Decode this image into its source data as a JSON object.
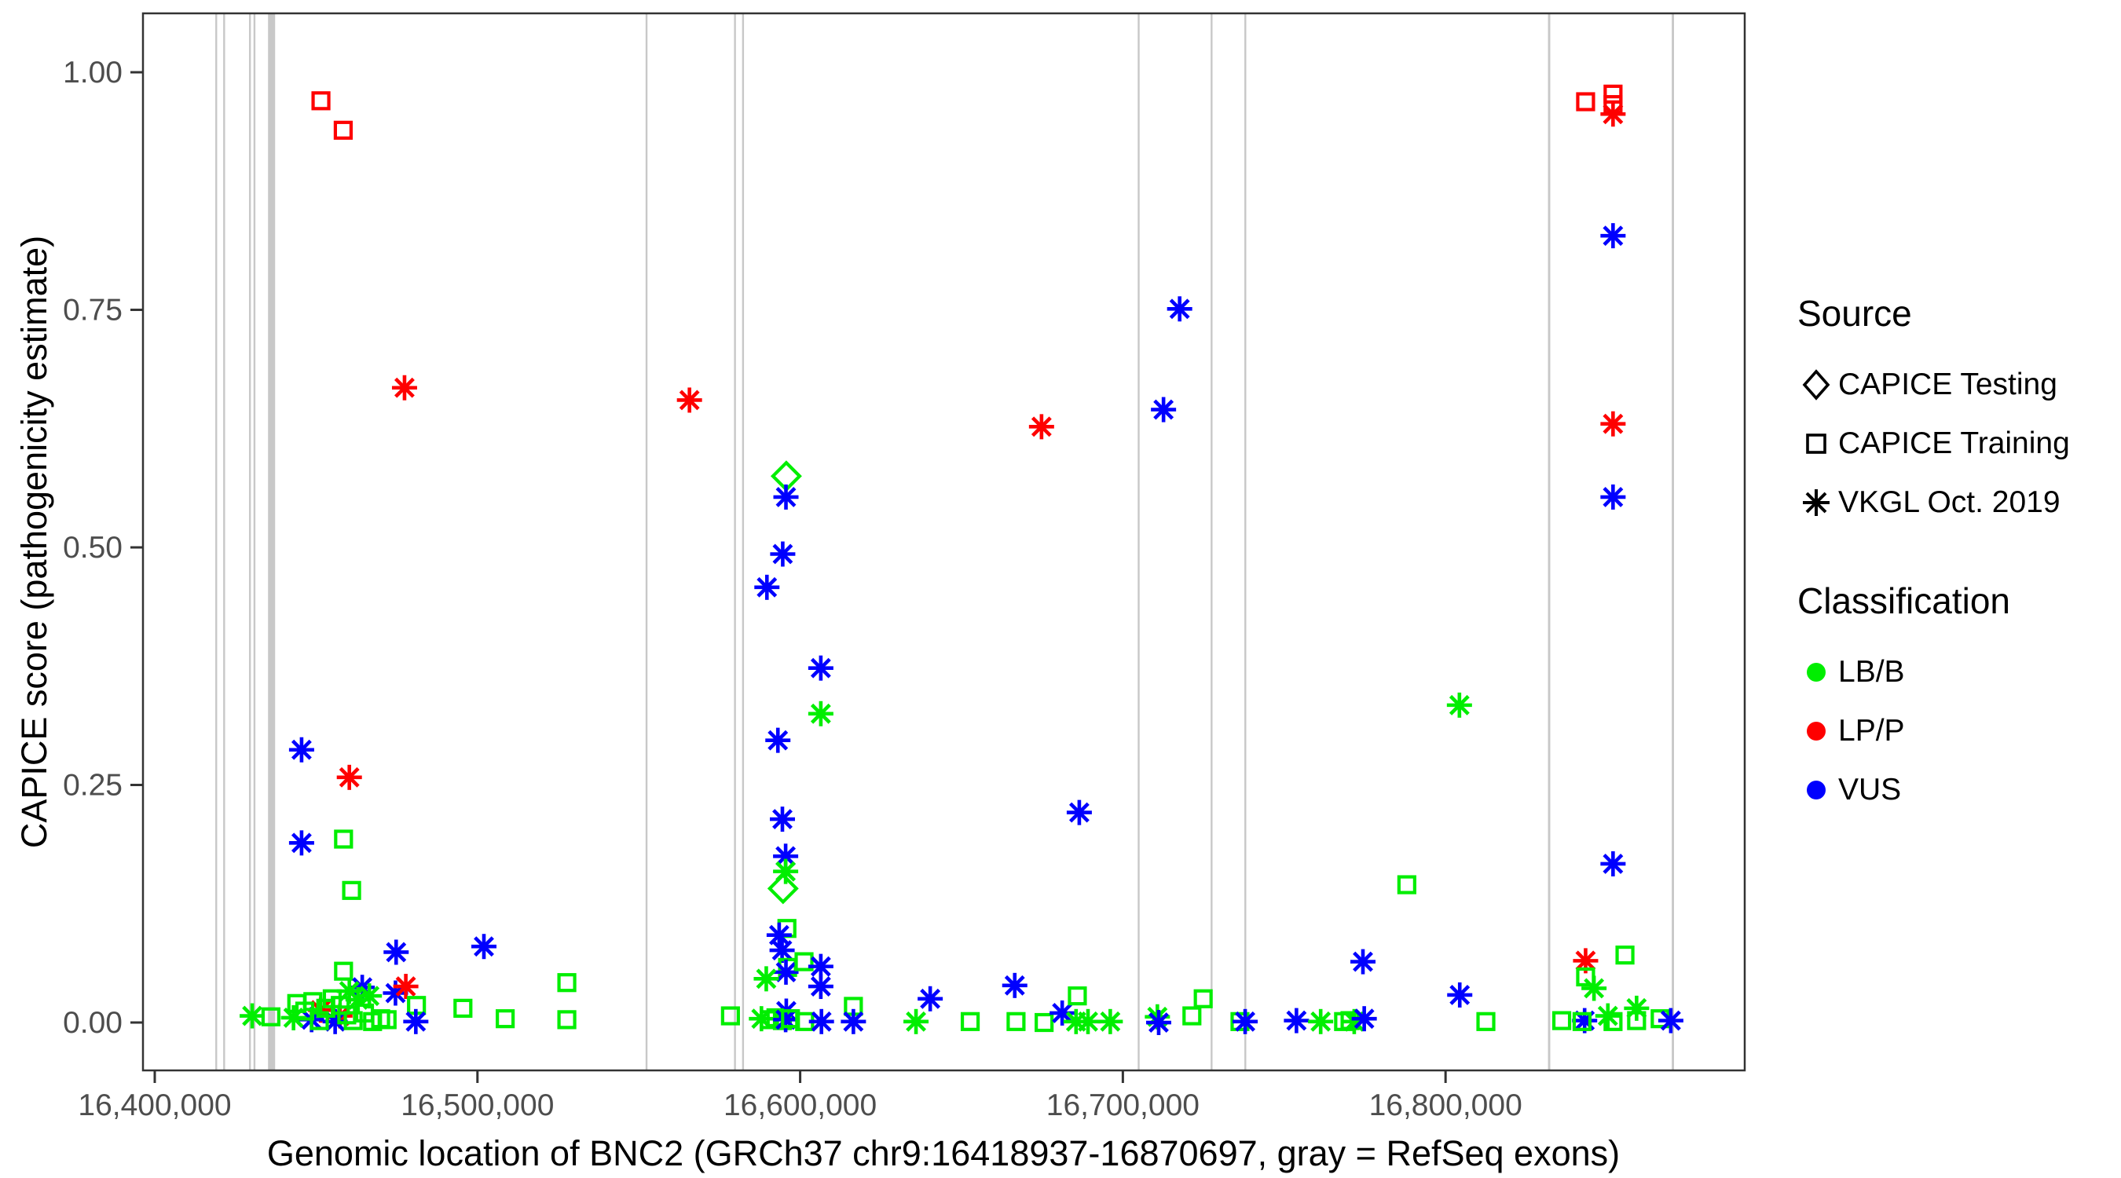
{
  "chart_data": {
    "type": "scatter",
    "title": "",
    "xlabel": "Genomic location of BNC2 (GRCh37 chr9:16418937-16870697, gray = RefSeq exons)",
    "ylabel": "CAPICE score (pathogenicity estimate)",
    "x_ticks": {
      "values": [
        16400000,
        16500000,
        16600000,
        16700000,
        16800000
      ],
      "labels": [
        "16,400,000",
        "16,500,000",
        "16,600,000",
        "16,700,000",
        "16,800,000"
      ]
    },
    "y_ticks": {
      "values": [
        0,
        0.25,
        0.5,
        0.75,
        1.0
      ],
      "labels": [
        "0.00",
        "0.25",
        "0.50",
        "0.75",
        "1.00"
      ]
    },
    "x_domain": [
      16396348,
      16892708
    ],
    "y_domain": [
      -0.0504,
      1.062
    ],
    "grid": false,
    "legend_position": "right",
    "exon_color": "#c8c8c8",
    "exons": [
      {
        "pos": 16419050,
        "bp": 500
      },
      {
        "pos": 16421500,
        "bp": 500
      },
      {
        "pos": 16429500,
        "bp": 500
      },
      {
        "pos": 16430900,
        "bp": 500
      },
      {
        "pos": 16436200,
        "bp": 2200
      },
      {
        "pos": 16552400,
        "bp": 500
      },
      {
        "pos": 16579800,
        "bp": 500
      },
      {
        "pos": 16582300,
        "bp": 500
      },
      {
        "pos": 16704900,
        "bp": 500
      },
      {
        "pos": 16727500,
        "bp": 500
      },
      {
        "pos": 16737950,
        "bp": 500
      },
      {
        "pos": 16832100,
        "bp": 700
      },
      {
        "pos": 16870450,
        "bp": 700
      }
    ],
    "legend": {
      "source_title": "Source",
      "classification_title": "Classification"
    },
    "sources": [
      {
        "code": "T",
        "label": "CAPICE Testing",
        "shape": "diamond"
      },
      {
        "code": "R",
        "label": "CAPICE Training",
        "shape": "square"
      },
      {
        "code": "V",
        "label": "VKGL Oct. 2019",
        "shape": "asterisk"
      }
    ],
    "classes": [
      {
        "code": "B",
        "label": "LB/B",
        "color": "#00ee00"
      },
      {
        "code": "P",
        "label": "LP/P",
        "color": "#fe0000"
      },
      {
        "code": "U",
        "label": "VUS",
        "color": "#0000fe"
      }
    ],
    "points": [
      [
        16451500,
        0.97,
        "R",
        "P"
      ],
      [
        16458400,
        0.939,
        "R",
        "P"
      ],
      [
        16445500,
        0.287,
        "V",
        "U"
      ],
      [
        16460300,
        0.258,
        "V",
        "P"
      ],
      [
        16445500,
        0.189,
        "V",
        "U"
      ],
      [
        16458500,
        0.193,
        "R",
        "B"
      ],
      [
        16461000,
        0.139,
        "R",
        "B"
      ],
      [
        16474800,
        0.074,
        "V",
        "U"
      ],
      [
        16502000,
        0.08,
        "V",
        "U"
      ],
      [
        16458500,
        0.054,
        "R",
        "B"
      ],
      [
        16464300,
        0.037,
        "V",
        "U"
      ],
      [
        16460300,
        0.033,
        "V",
        "B"
      ],
      [
        16474600,
        0.031,
        "V",
        "U"
      ],
      [
        16477800,
        0.038,
        "V",
        "P"
      ],
      [
        16481100,
        0.018,
        "R",
        "B"
      ],
      [
        16495500,
        0.015,
        "R",
        "B"
      ],
      [
        16480900,
        0.001,
        "V",
        "U"
      ],
      [
        16451400,
        0.013,
        "V",
        "P"
      ],
      [
        16457400,
        0.007,
        "V",
        "P"
      ],
      [
        16430200,
        0.007,
        "V",
        "B"
      ],
      [
        16436000,
        0.006,
        "R",
        "B"
      ],
      [
        16448600,
        0.003,
        "V",
        "U"
      ],
      [
        16455900,
        0.001,
        "V",
        "U"
      ],
      [
        16470000,
        0.004,
        "R",
        "B"
      ],
      [
        16472000,
        0.003,
        "R",
        "B"
      ],
      [
        16508600,
        0.004,
        "R",
        "B"
      ],
      [
        16527700,
        0.042,
        "R",
        "B"
      ],
      [
        16527700,
        0.003,
        "R",
        "B"
      ],
      [
        16444000,
        0.02,
        "R",
        "B"
      ],
      [
        16446500,
        0.012,
        "R",
        "B"
      ],
      [
        16449000,
        0.022,
        "R",
        "B"
      ],
      [
        16451000,
        0.002,
        "R",
        "B"
      ],
      [
        16453000,
        0.015,
        "R",
        "B"
      ],
      [
        16455000,
        0.025,
        "R",
        "B"
      ],
      [
        16457500,
        0.018,
        "R",
        "B"
      ],
      [
        16459500,
        0.008,
        "R",
        "B"
      ],
      [
        16461500,
        0.002,
        "R",
        "B"
      ],
      [
        16463000,
        0.024,
        "V",
        "B"
      ],
      [
        16465000,
        0.01,
        "R",
        "B"
      ],
      [
        16466500,
        0.028,
        "V",
        "B"
      ],
      [
        16467500,
        0.001,
        "R",
        "B"
      ],
      [
        16443000,
        0.005,
        "V",
        "B"
      ],
      [
        16477400,
        0.668,
        "V",
        "P"
      ],
      [
        16565700,
        0.655,
        "V",
        "P"
      ],
      [
        16595700,
        0.575,
        "T",
        "B"
      ],
      [
        16595600,
        0.553,
        "V",
        "U"
      ],
      [
        16594600,
        0.493,
        "V",
        "U"
      ],
      [
        16589700,
        0.458,
        "V",
        "U"
      ],
      [
        16606400,
        0.373,
        "V",
        "U"
      ],
      [
        16606400,
        0.325,
        "V",
        "B"
      ],
      [
        16593100,
        0.297,
        "V",
        "U"
      ],
      [
        16594500,
        0.214,
        "V",
        "U"
      ],
      [
        16595500,
        0.175,
        "V",
        "U"
      ],
      [
        16595500,
        0.159,
        "V",
        "B"
      ],
      [
        16594700,
        0.141,
        "T",
        "B"
      ],
      [
        16595900,
        0.099,
        "R",
        "B"
      ],
      [
        16593500,
        0.092,
        "V",
        "U"
      ],
      [
        16594400,
        0.076,
        "V",
        "U"
      ],
      [
        16596100,
        0.058,
        "R",
        "B"
      ],
      [
        16595600,
        0.053,
        "V",
        "U"
      ],
      [
        16601200,
        0.064,
        "R",
        "B"
      ],
      [
        16606400,
        0.059,
        "V",
        "U"
      ],
      [
        16589500,
        0.046,
        "V",
        "B"
      ],
      [
        16606400,
        0.038,
        "V",
        "U"
      ],
      [
        16595700,
        0.012,
        "V",
        "U"
      ],
      [
        16588000,
        0.004,
        "V",
        "B"
      ],
      [
        16590500,
        0.003,
        "R",
        "B"
      ],
      [
        16592500,
        0.005,
        "R",
        "B"
      ],
      [
        16594500,
        0.002,
        "R",
        "B"
      ],
      [
        16595500,
        0.003,
        "V",
        "U"
      ],
      [
        16597000,
        0.004,
        "R",
        "B"
      ],
      [
        16601400,
        0.001,
        "R",
        "B"
      ],
      [
        16606600,
        0.001,
        "V",
        "U"
      ],
      [
        16578400,
        0.007,
        "R",
        "B"
      ],
      [
        16616500,
        0.017,
        "R",
        "B"
      ],
      [
        16616500,
        0.001,
        "V",
        "U"
      ],
      [
        16717600,
        0.751,
        "V",
        "U"
      ],
      [
        16712600,
        0.645,
        "V",
        "U"
      ],
      [
        16674800,
        0.627,
        "V",
        "P"
      ],
      [
        16686500,
        0.221,
        "V",
        "U"
      ],
      [
        16640300,
        0.025,
        "V",
        "U"
      ],
      [
        16635900,
        0.001,
        "V",
        "B"
      ],
      [
        16652700,
        0.001,
        "R",
        "B"
      ],
      [
        16666500,
        0.039,
        "V",
        "U"
      ],
      [
        16666900,
        0.001,
        "R",
        "B"
      ],
      [
        16675600,
        0.0,
        "R",
        "B"
      ],
      [
        16681200,
        0.01,
        "V",
        "U"
      ],
      [
        16685900,
        0.028,
        "R",
        "B"
      ],
      [
        16685500,
        0.001,
        "V",
        "B"
      ],
      [
        16689200,
        0.001,
        "V",
        "B"
      ],
      [
        16696100,
        0.001,
        "V",
        "B"
      ],
      [
        16710700,
        0.006,
        "V",
        "B"
      ],
      [
        16711100,
        0.0,
        "V",
        "U"
      ],
      [
        16721400,
        0.007,
        "R",
        "B"
      ],
      [
        16724900,
        0.025,
        "R",
        "B"
      ],
      [
        16736300,
        0.001,
        "R",
        "B"
      ],
      [
        16737900,
        0.001,
        "V",
        "U"
      ],
      [
        16774400,
        0.064,
        "V",
        "U"
      ],
      [
        16753800,
        0.002,
        "V",
        "U"
      ],
      [
        16761300,
        0.001,
        "V",
        "B"
      ],
      [
        16768400,
        0.001,
        "R",
        "B"
      ],
      [
        16770400,
        0.002,
        "R",
        "B"
      ],
      [
        16771700,
        0.001,
        "V",
        "B"
      ],
      [
        16774800,
        0.004,
        "V",
        "U"
      ],
      [
        16804400,
        0.029,
        "V",
        "U"
      ],
      [
        16812500,
        0.001,
        "R",
        "B"
      ],
      [
        16804300,
        0.334,
        "V",
        "B"
      ],
      [
        16788000,
        0.145,
        "R",
        "B"
      ],
      [
        16843400,
        0.969,
        "R",
        "P"
      ],
      [
        16851900,
        0.977,
        "R",
        "P"
      ],
      [
        16851900,
        0.966,
        "R",
        "P"
      ],
      [
        16851900,
        0.956,
        "V",
        "P"
      ],
      [
        16851900,
        0.828,
        "V",
        "U"
      ],
      [
        16851900,
        0.63,
        "V",
        "P"
      ],
      [
        16851900,
        0.553,
        "V",
        "U"
      ],
      [
        16851900,
        0.167,
        "V",
        "U"
      ],
      [
        16843400,
        0.065,
        "V",
        "P"
      ],
      [
        16855600,
        0.071,
        "R",
        "B"
      ],
      [
        16843400,
        0.048,
        "R",
        "B"
      ],
      [
        16846000,
        0.036,
        "V",
        "B"
      ],
      [
        16836000,
        0.002,
        "R",
        "B"
      ],
      [
        16843100,
        0.002,
        "V",
        "U"
      ],
      [
        16842300,
        0.001,
        "R",
        "B"
      ],
      [
        16850300,
        0.007,
        "V",
        "B"
      ],
      [
        16851900,
        0.001,
        "R",
        "B"
      ],
      [
        16859200,
        0.015,
        "V",
        "B"
      ],
      [
        16859200,
        0.002,
        "R",
        "B"
      ],
      [
        16866500,
        0.004,
        "R",
        "B"
      ],
      [
        16869800,
        0.002,
        "V",
        "U"
      ]
    ]
  }
}
